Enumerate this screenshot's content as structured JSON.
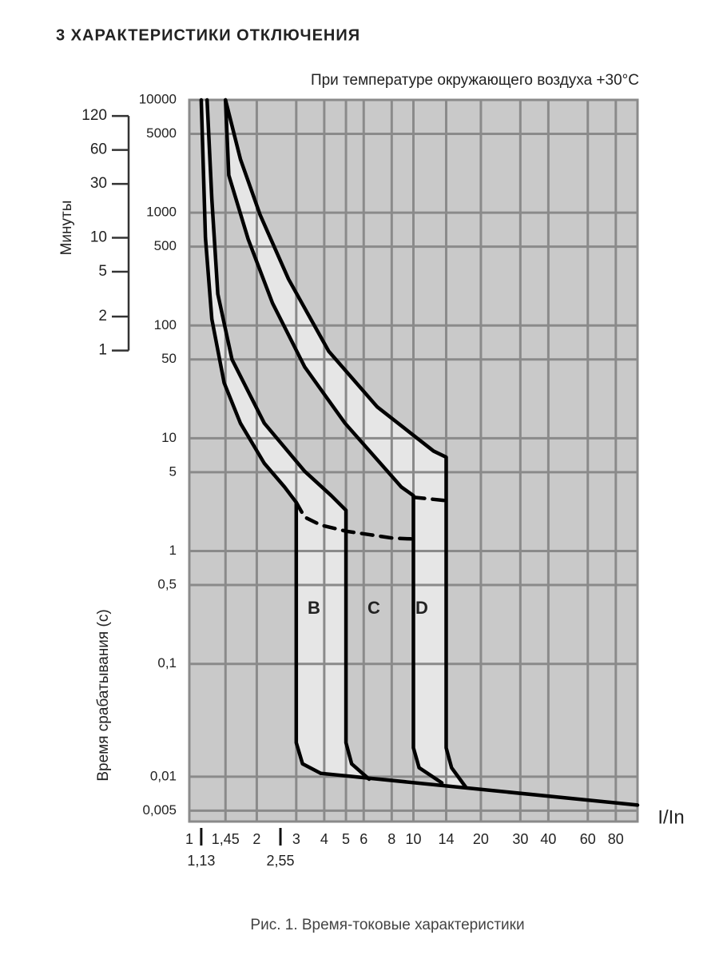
{
  "chart_data": {
    "type": "line",
    "title": "3 ХАРАКТЕРИСТИКИ ОТКЛЮЧЕНИЯ",
    "subtitle": "При температуре окружающего воздуха +30°С",
    "caption": "Рис. 1. Время-токовые характеристики",
    "x_label": "I/In",
    "y_label": "Время срабатывания (с)",
    "y2_label": "Минуты",
    "annotations": [
      "B",
      "C",
      "D"
    ],
    "log_x": true,
    "log_y": true,
    "grid": true,
    "xlim": [
      1,
      100
    ],
    "ylim": [
      0.004,
      10000
    ],
    "y2lim": [
      6.67e-05,
      166.67
    ],
    "xticks": [
      1,
      {
        "value": 1.45,
        "label": "1,45"
      },
      2,
      3,
      4,
      5,
      6,
      8,
      10,
      14,
      20,
      30,
      40,
      60,
      80
    ],
    "xticks2": [
      {
        "value": 1.13,
        "label": "1,13"
      },
      {
        "value": 2.55,
        "label": "2,55"
      }
    ],
    "yticks": [
      10000,
      5000,
      1000,
      500,
      100,
      50,
      10,
      5,
      1,
      {
        "value": 0.5,
        "label": "0,5"
      },
      {
        "value": 0.1,
        "label": "0,1"
      },
      {
        "value": 0.01,
        "label": "0,01"
      },
      {
        "value": 0.005,
        "label": "0,005"
      }
    ],
    "y2ticks": [
      120,
      60,
      30,
      10,
      5,
      2,
      1
    ],
    "series": [
      {
        "color": "#000000",
        "dash": false,
        "x": [
          1.13,
          1.18,
          1.26,
          1.43,
          1.69,
          2.16,
          2.66,
          3,
          3,
          3.2,
          3.86
        ],
        "values": [
          10000,
          600,
          114,
          31,
          13.6,
          6,
          3.7,
          2.7,
          0.02,
          0.013,
          0.0107
        ]
      },
      {
        "color": "#000000",
        "dash": false,
        "x": [
          1.2,
          1.26,
          1.34,
          1.55,
          2.16,
          3.27,
          4.3,
          5,
          5,
          5.3,
          6.34
        ],
        "values": [
          10000,
          1320,
          190,
          50,
          13.6,
          5.1,
          3.1,
          2.3,
          0.02,
          0.013,
          0.0095
        ]
      },
      {
        "color": "#000000",
        "dash": false,
        "x": [
          1.45,
          1.5,
          1.83,
          2.35,
          3.27,
          4.95,
          8.83,
          10,
          10,
          10.6,
          13.4
        ],
        "values": [
          10000,
          2150,
          583,
          158,
          43,
          13.6,
          3.7,
          3.1,
          0.018,
          0.012,
          0.0088
        ]
      },
      {
        "color": "#000000",
        "dash": false,
        "x": [
          1.45,
          1.69,
          2.07,
          2.77,
          4.19,
          6.89,
          12.3,
          14,
          14,
          14.8,
          17.1
        ],
        "values": [
          10000,
          2985,
          955,
          258,
          59,
          19,
          7.7,
          6.8,
          0.018,
          0.012,
          0.0081
        ]
      },
      {
        "color": "#000000",
        "dash": false,
        "x": [
          3.86,
          100
        ],
        "values": [
          0.0107,
          0.0056
        ]
      },
      {
        "color": "#000000",
        "dash": true,
        "x": [
          3,
          3.27,
          3.86,
          5,
          6.34,
          8.13,
          10
        ],
        "values": [
          2.7,
          2.0,
          1.7,
          1.5,
          1.4,
          1.3,
          1.28
        ]
      },
      {
        "color": "#000000",
        "dash": true,
        "x": [
          10,
          14
        ],
        "values": [
          3.0,
          2.8
        ]
      }
    ]
  }
}
